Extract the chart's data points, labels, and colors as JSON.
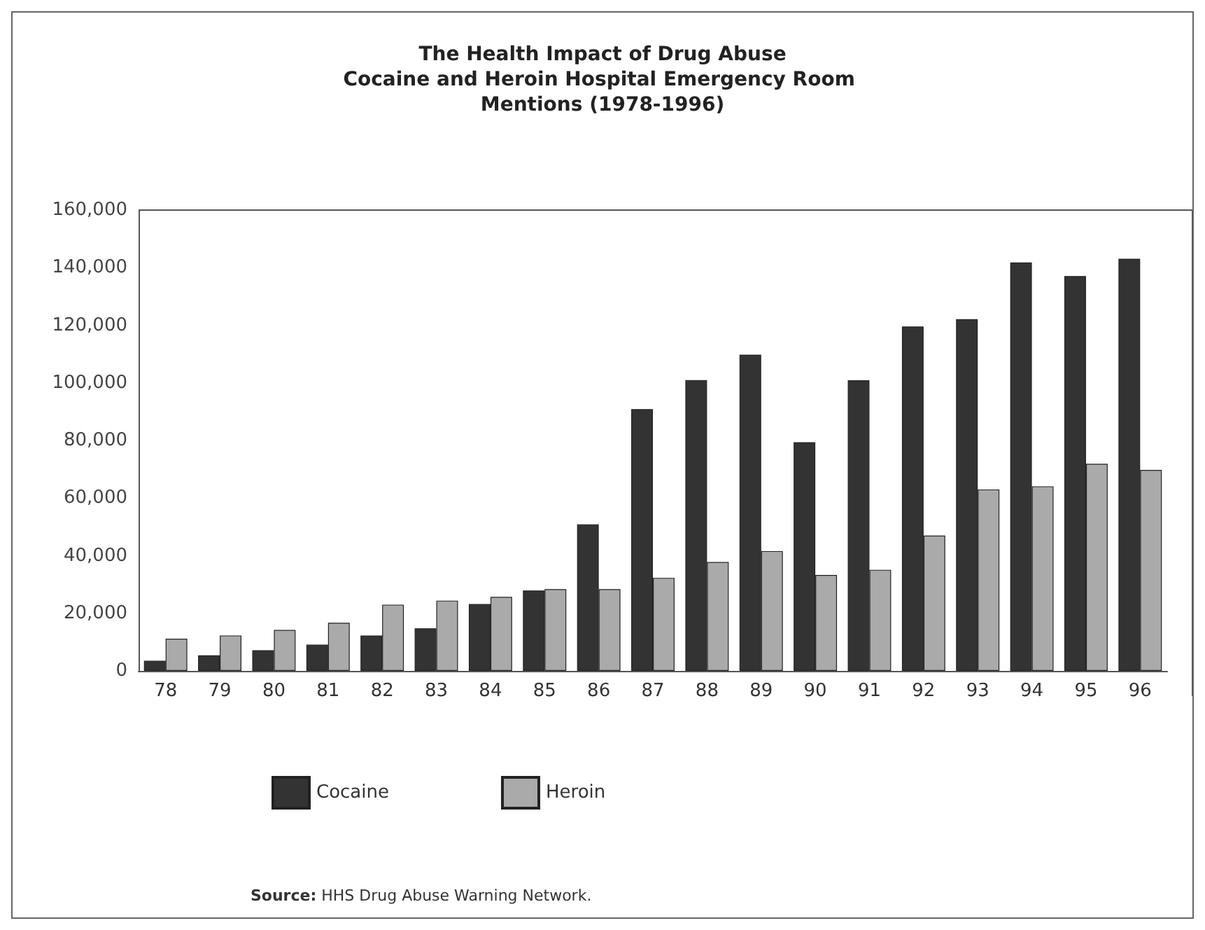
{
  "chart_data": {
    "type": "bar",
    "title": "The Health Impact of Drug Abuse",
    "subtitle": "Cocaine and Heroin Hospital Emergency Room Mentions (1978-1996)",
    "categories": [
      "78",
      "79",
      "80",
      "81",
      "82",
      "83",
      "84",
      "85",
      "86",
      "87",
      "88",
      "89",
      "90",
      "91",
      "92",
      "93",
      "94",
      "95",
      "96"
    ],
    "series": [
      {
        "name": "Cocaine",
        "color": "#333333",
        "values": [
          3500,
          5400,
          7200,
          9100,
          12300,
          14800,
          23200,
          27900,
          50900,
          90900,
          101000,
          109800,
          79400,
          100900,
          119600,
          122100,
          141800,
          137100,
          143100
        ]
      },
      {
        "name": "Heroin",
        "color": "#aaaaaa",
        "values": [
          11200,
          12300,
          14200,
          16700,
          23000,
          24400,
          25700,
          28400,
          28400,
          32300,
          37800,
          41600,
          33300,
          35100,
          47000,
          63000,
          64100,
          71900,
          69800
        ]
      }
    ],
    "ylim": [
      0,
      160000
    ],
    "yticks": [
      0,
      {
        "value": 20000,
        "label": "20,000"
      },
      {
        "value": 40000,
        "label": "40,000"
      },
      {
        "value": 60000,
        "label": "60,000"
      },
      {
        "value": 80000,
        "label": "80,000"
      },
      {
        "value": 100000,
        "label": "100,000"
      },
      {
        "value": 120000,
        "label": "120,000"
      },
      {
        "value": 140000,
        "label": "140,000"
      },
      {
        "value": 160000,
        "label": "160,000"
      }
    ],
    "grid": false,
    "legend": "bottom left",
    "annotations": [
      "Source: HHS Drug Abuse Warning Network."
    ]
  }
}
